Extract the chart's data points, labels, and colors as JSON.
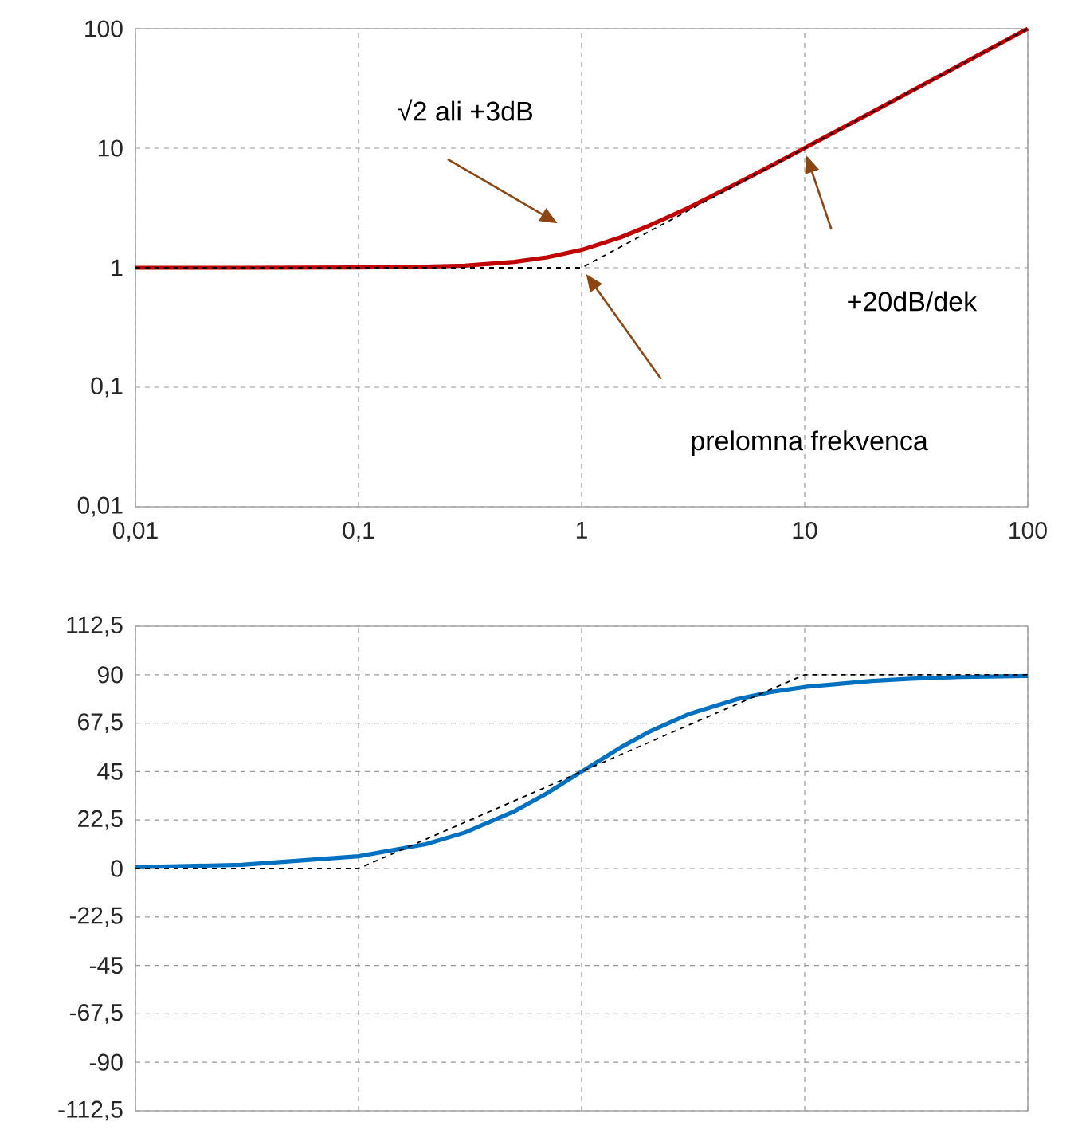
{
  "chart_data": [
    {
      "type": "line",
      "log": "xy",
      "grid": true,
      "marker": "none",
      "xlim": [
        0.01,
        100
      ],
      "ylim": [
        0.01,
        100
      ],
      "xticks": [
        {
          "value": 0.01,
          "label": "0,01"
        },
        {
          "value": 0.1,
          "label": "0,1"
        },
        1,
        10,
        100
      ],
      "yticks": [
        {
          "value": 0.01,
          "label": "0,01"
        },
        {
          "value": 0.1,
          "label": "0,1"
        },
        1,
        10,
        100
      ],
      "series": [
        {
          "color": "#c00000",
          "x": [
            0.01,
            0.03,
            0.1,
            0.2,
            0.3,
            0.5,
            0.7,
            1,
            1.5,
            2,
            3,
            5,
            7,
            10,
            20,
            30,
            50,
            100
          ],
          "values": [
            1,
            1,
            1.005,
            1.02,
            1.04,
            1.12,
            1.22,
            1.41,
            1.8,
            2.24,
            3.16,
            5.1,
            7.07,
            10.05,
            20,
            30,
            50,
            100
          ]
        },
        {
          "color": "#000000",
          "line_style": "dashed",
          "x": [
            0.01,
            1,
            100
          ],
          "values": [
            1,
            1,
            100
          ]
        }
      ],
      "annotations": [
        "√2  ali +3dB",
        "+20dB/dek",
        "prelomna frekvenca"
      ]
    },
    {
      "type": "line",
      "log": "x",
      "grid": true,
      "marker": "none",
      "tick_labels": "y",
      "xlim": [
        0.01,
        100
      ],
      "ylim": [
        -112.5,
        112.5
      ],
      "xticks": [
        0.01,
        0.1,
        1,
        10,
        100
      ],
      "yticks": [
        {
          "value": 112.5,
          "label": "112,5"
        },
        90,
        {
          "value": 67.5,
          "label": "67,5"
        },
        45,
        {
          "value": 22.5,
          "label": "22,5"
        },
        0,
        {
          "value": -22.5,
          "label": "-22,5"
        },
        -45,
        {
          "value": -67.5,
          "label": "-67,5"
        },
        -90,
        {
          "value": -112.5,
          "label": "-112,5"
        }
      ],
      "series": [
        {
          "color": "#0070c0",
          "x": [
            0.01,
            0.03,
            0.1,
            0.2,
            0.3,
            0.5,
            0.7,
            1,
            1.5,
            2,
            3,
            5,
            7,
            10,
            20,
            30,
            50,
            100
          ],
          "values": [
            0.6,
            1.7,
            5.7,
            11.3,
            16.7,
            26.6,
            35,
            45,
            56.3,
            63.4,
            71.6,
            78.7,
            81.9,
            84.3,
            87.1,
            88.1,
            88.9,
            89.4
          ]
        },
        {
          "color": "#000000",
          "line_style": "dashed",
          "x": [
            0.01,
            0.1,
            10,
            100
          ],
          "values": [
            0,
            0,
            90,
            90
          ]
        }
      ]
    }
  ]
}
